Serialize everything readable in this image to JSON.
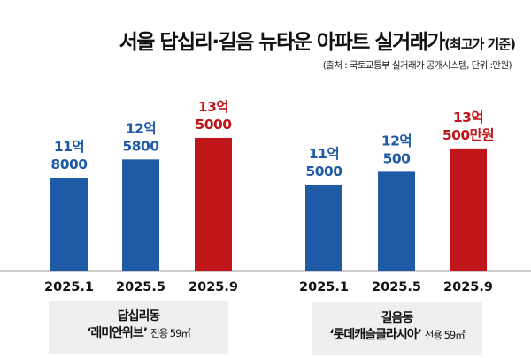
{
  "title": "서울 답십리·길음 뉴타운 아파트 실거래가",
  "title_suffix": "(최고가 기준)",
  "source": "(출처 : 국토교통부 실거래가 공개시스템, 단위 :만원)",
  "colors": {
    "blue": "#1f5aa6",
    "red": "#c0161b"
  },
  "chart_data": [
    {
      "type": "bar",
      "group_name": "답십리동",
      "complex": "‘래미안위브’",
      "size": "전용 59㎡",
      "categories": [
        "2025.1",
        "2025.5",
        "2025.9"
      ],
      "values": [
        118000,
        125800,
        135000
      ],
      "value_labels": [
        [
          "11억",
          "8000"
        ],
        [
          "12억",
          "5800"
        ],
        [
          "13억",
          "5000"
        ]
      ],
      "unit": "만원",
      "highlight_index": 2
    },
    {
      "type": "bar",
      "group_name": "길음동",
      "complex": "‘롯데캐슬클라시아’",
      "size": "전용 59㎡",
      "categories": [
        "2025.1",
        "2025.5",
        "2025.9"
      ],
      "values": [
        115000,
        120500,
        130500
      ],
      "value_labels": [
        [
          "11억",
          "5000"
        ],
        [
          "12억",
          "500"
        ],
        [
          "13억",
          "500만원"
        ]
      ],
      "unit": "만원",
      "highlight_index": 2
    }
  ]
}
